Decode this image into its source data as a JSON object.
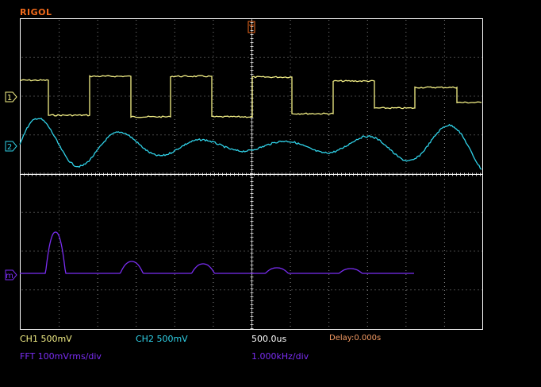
{
  "brand": {
    "text": "RIGOL",
    "color": "#f26a1b"
  },
  "colors": {
    "frame": "#ffffff",
    "grid_dots": "#8a8a8a",
    "ch1": "#f3ef86",
    "ch2": "#30d2e8",
    "math": "#7a2df2",
    "trigger": "#f26a1b",
    "delay": "#f39a63"
  },
  "markers": {
    "ch1": "1",
    "ch2": "2",
    "math": "m"
  },
  "trigger_marker": {
    "icon": "trigger-position-icon"
  },
  "readouts": {
    "ch1_scale": "CH1 500mV",
    "ch2_scale": "CH2 500mV",
    "timebase": "500.0us",
    "delay": "Delay:0.000s",
    "fft_scale": "FFT 100mVrms/div",
    "fft_freq_scale": "1.000kHz/div"
  }
}
